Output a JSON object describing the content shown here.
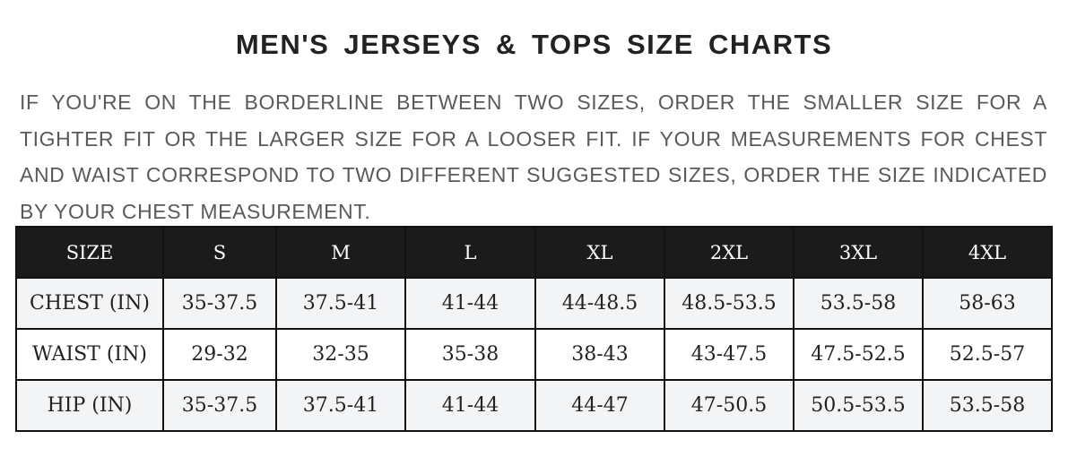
{
  "title": "MEN'S JERSEYS & TOPS SIZE CHARTS",
  "note": "IF YOU'RE ON THE BORDERLINE BETWEEN TWO SIZES, ORDER THE SMALLER SIZE FOR A TIGHTER FIT OR THE LARGER SIZE FOR A LOOSER FIT. IF YOUR MEASUREMENTS FOR CHEST AND WAIST CORRESPOND TO TWO DIFFERENT SUGGESTED SIZES, ORDER THE SIZE INDICATED BY YOUR CHEST MEASUREMENT.",
  "table": {
    "header": [
      "SIZE",
      "S",
      "M",
      "L",
      "XL",
      "2XL",
      "3XL",
      "4XL"
    ],
    "rows": [
      [
        "CHEST (IN)",
        "35-37.5",
        "37.5-41",
        "41-44",
        "44-48.5",
        "48.5-53.5",
        "53.5-58",
        "58-63"
      ],
      [
        "WAIST (IN)",
        "29-32",
        "32-35",
        "35-38",
        "38-43",
        "43-47.5",
        "47.5-52.5",
        "52.5-57"
      ],
      [
        "HIP (IN)",
        "35-37.5",
        "37.5-41",
        "41-44",
        "44-47",
        "47-50.5",
        "50.5-53.5",
        "53.5-58"
      ]
    ]
  },
  "colors": {
    "header_bg": "#1b1b1b",
    "row_alt_bg": "#f3f4f6",
    "text": "#222222"
  }
}
